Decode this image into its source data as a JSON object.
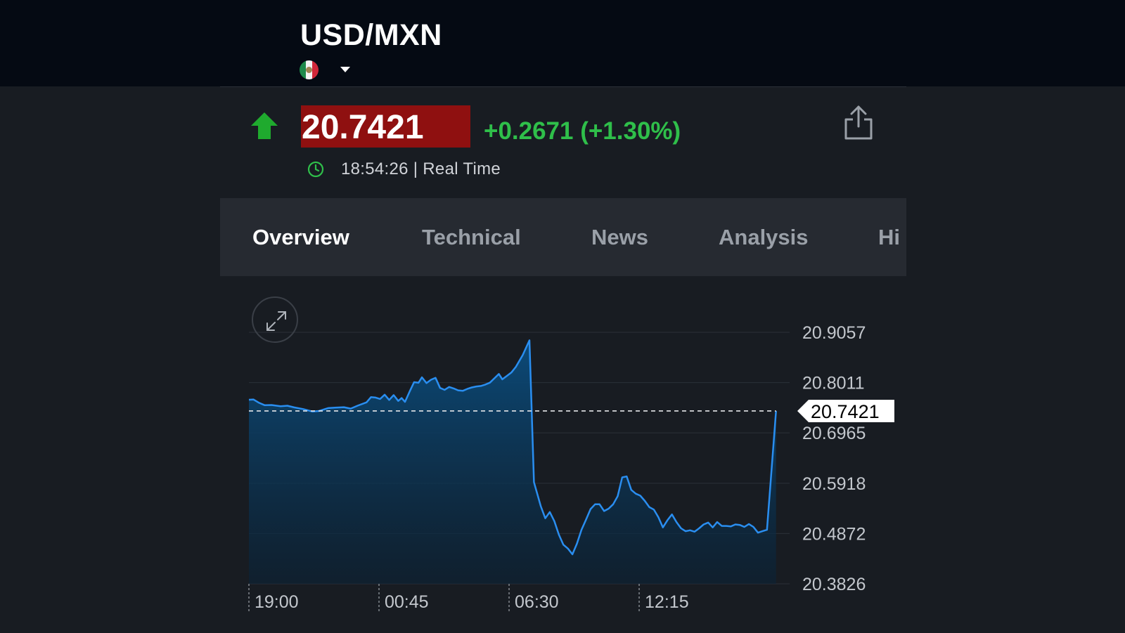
{
  "header": {
    "symbol": "USD/MXN",
    "flag_icon": "mexico-flag-icon",
    "dropdown_icon": "caret-down-icon"
  },
  "quote": {
    "direction_icon": "up-arrow-icon",
    "price": "20.7421",
    "change": "+0.2671 (+1.30%)",
    "time": "18:54:26 | Real Time",
    "clock_icon": "clock-icon",
    "share_icon": "share-icon",
    "colors": {
      "up": "#2fbf4a",
      "price_bg": "#8f1010",
      "line": "#2a8ef0"
    }
  },
  "tabs": [
    {
      "label": "Overview",
      "active": true
    },
    {
      "label": "Technical",
      "active": false
    },
    {
      "label": "News",
      "active": false
    },
    {
      "label": "Analysis",
      "active": false
    },
    {
      "label": "Hi",
      "active": false
    }
  ],
  "expand_icon": "expand-icon",
  "chart_data": {
    "type": "area",
    "title": "",
    "xlabel": "",
    "ylabel": "",
    "ylim": [
      20.3826,
      20.9057
    ],
    "y_ticks": [
      "20.9057",
      "20.8011",
      "20.6965",
      "20.5918",
      "20.4872",
      "20.3826"
    ],
    "x_ticks": [
      "19:00",
      "00:45",
      "06:30",
      "12:15"
    ],
    "x_tick_positions": [
      0,
      5.75,
      11.5,
      17.25
    ],
    "x_range": [
      0,
      23.9
    ],
    "grid": true,
    "current_value": 20.7421,
    "current_label": "20.7421",
    "series": [
      {
        "values": [
          [
            0.0,
            20.7655
          ],
          [
            0.2,
            20.766
          ],
          [
            0.45,
            20.759
          ],
          [
            0.7,
            20.754
          ],
          [
            1.0,
            20.7545
          ],
          [
            1.4,
            20.752
          ],
          [
            1.7,
            20.753
          ],
          [
            2.0,
            20.7495
          ],
          [
            2.4,
            20.746
          ],
          [
            2.8,
            20.741
          ],
          [
            3.1,
            20.742
          ],
          [
            3.5,
            20.748
          ],
          [
            3.8,
            20.749
          ],
          [
            4.2,
            20.75
          ],
          [
            4.5,
            20.747
          ],
          [
            4.8,
            20.753
          ],
          [
            5.2,
            20.76
          ],
          [
            5.4,
            20.771
          ],
          [
            5.6,
            20.77
          ],
          [
            5.8,
            20.767
          ],
          [
            6.0,
            20.776
          ],
          [
            6.2,
            20.765
          ],
          [
            6.4,
            20.775
          ],
          [
            6.6,
            20.763
          ],
          [
            6.75,
            20.769
          ],
          [
            6.9,
            20.761
          ],
          [
            7.1,
            20.782
          ],
          [
            7.3,
            20.802
          ],
          [
            7.5,
            20.801
          ],
          [
            7.65,
            20.812
          ],
          [
            7.85,
            20.8
          ],
          [
            8.05,
            20.807
          ],
          [
            8.25,
            20.811
          ],
          [
            8.45,
            20.79
          ],
          [
            8.65,
            20.786
          ],
          [
            8.85,
            20.792
          ],
          [
            9.05,
            20.789
          ],
          [
            9.25,
            20.785
          ],
          [
            9.45,
            20.784
          ],
          [
            9.65,
            20.788
          ],
          [
            9.85,
            20.791
          ],
          [
            10.05,
            20.793
          ],
          [
            10.25,
            20.794
          ],
          [
            10.45,
            20.797
          ],
          [
            10.65,
            20.801
          ],
          [
            10.85,
            20.81
          ],
          [
            11.05,
            20.819
          ],
          [
            11.2,
            20.808
          ],
          [
            11.4,
            20.815
          ],
          [
            11.6,
            20.822
          ],
          [
            11.8,
            20.834
          ],
          [
            12.1,
            20.858
          ],
          [
            12.4,
            20.889
          ],
          [
            12.6,
            20.594
          ],
          [
            12.9,
            20.544
          ],
          [
            13.1,
            20.519
          ],
          [
            13.3,
            20.532
          ],
          [
            13.5,
            20.513
          ],
          [
            13.7,
            20.485
          ],
          [
            13.9,
            20.464
          ],
          [
            14.1,
            20.456
          ],
          [
            14.3,
            20.444
          ],
          [
            14.5,
            20.466
          ],
          [
            14.7,
            20.495
          ],
          [
            14.9,
            20.516
          ],
          [
            15.1,
            20.538
          ],
          [
            15.3,
            20.548
          ],
          [
            15.5,
            20.548
          ],
          [
            15.7,
            20.534
          ],
          [
            15.9,
            20.539
          ],
          [
            16.1,
            20.548
          ],
          [
            16.3,
            20.565
          ],
          [
            16.5,
            20.604
          ],
          [
            16.7,
            20.606
          ],
          [
            16.9,
            20.578
          ],
          [
            17.1,
            20.57
          ],
          [
            17.3,
            20.566
          ],
          [
            17.5,
            20.555
          ],
          [
            17.7,
            20.542
          ],
          [
            17.9,
            20.537
          ],
          [
            18.1,
            20.521
          ],
          [
            18.3,
            20.5
          ],
          [
            18.5,
            20.515
          ],
          [
            18.7,
            20.527
          ],
          [
            18.9,
            20.511
          ],
          [
            19.1,
            20.498
          ],
          [
            19.3,
            20.492
          ],
          [
            19.5,
            20.494
          ],
          [
            19.7,
            20.491
          ],
          [
            19.9,
            20.498
          ],
          [
            20.1,
            20.506
          ],
          [
            20.3,
            20.51
          ],
          [
            20.5,
            20.5
          ],
          [
            20.7,
            20.511
          ],
          [
            20.9,
            20.503
          ],
          [
            21.1,
            20.503
          ],
          [
            21.3,
            20.502
          ],
          [
            21.5,
            20.506
          ],
          [
            21.7,
            20.505
          ],
          [
            21.9,
            20.501
          ],
          [
            22.1,
            20.507
          ],
          [
            22.3,
            20.501
          ],
          [
            22.5,
            20.489
          ],
          [
            22.7,
            20.492
          ],
          [
            22.9,
            20.495
          ],
          [
            23.3,
            20.7421
          ]
        ]
      }
    ]
  }
}
